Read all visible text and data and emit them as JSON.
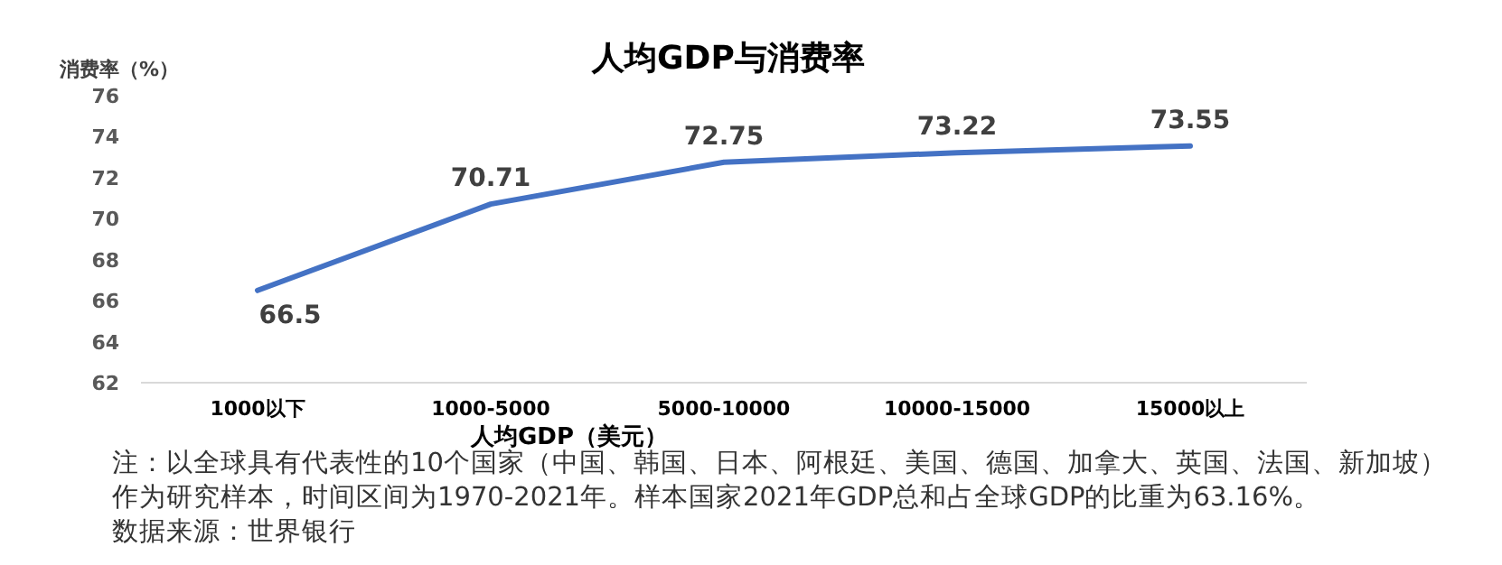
{
  "chart_data": {
    "type": "line",
    "title": "人均GDP与消费率",
    "xlabel": "人均GDP（美元）",
    "ylabel": "消费率（%）",
    "categories": [
      "1000以下",
      "1000-5000",
      "5000-10000",
      "10000-15000",
      "15000以上"
    ],
    "series": [
      {
        "color": "#4472c4",
        "values": [
          66.5,
          70.71,
          72.75,
          73.22,
          73.55
        ]
      }
    ],
    "ylim": [
      62,
      76
    ],
    "yticks": [
      62,
      64,
      66,
      68,
      70,
      72,
      74,
      76
    ],
    "data_labels": true,
    "grid": false,
    "marker": "none",
    "line_style": "solid",
    "annotations": [
      "注：以全球具有代表性的10个国家（中国、韩国、日本、阿根廷、美国、德国、加拿大、英国、法国、新加坡）作为研究样本，时间区间为1970-2021年。样本国家2021年GDP总和占全球GDP的比重为63.16%。",
      "数据来源：世界银行"
    ]
  }
}
